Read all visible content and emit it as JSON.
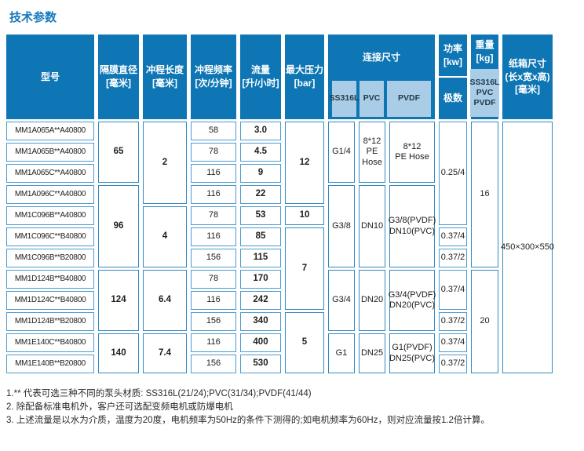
{
  "title": "技术参数",
  "header": {
    "model": "型号",
    "diaphragm": "隔膜直径\n[毫米]",
    "stroke": "冲程长度\n[毫米]",
    "frequency": "冲程频率\n[次/分钟]",
    "flow": "流量\n[升/小时]",
    "pressure": "最大压力\n[bar]",
    "connection": "连接尺寸",
    "conn_ss": "SS316L",
    "conn_pvc": "PVC",
    "conn_pvdf": "PVDF",
    "power": "功率\n[kw]",
    "poles": "极数",
    "weight": "重量\n[kg]",
    "weight_materials": "SS316L\nPVC\nPVDF",
    "carton": "纸箱尺寸\n(长x宽x高)\n[毫米]"
  },
  "rows": {
    "models": [
      "MM1A065A**A40800",
      "MM1A065B**A40800",
      "MM1A065C**A40800",
      "MM1A096C**A40800",
      "MM1C096B**A40800",
      "MM1C096C**B40800",
      "MM1C096B**B20800",
      "MM1D124B**B40800",
      "MM1D124C**B40800",
      "MM1D124B**B20800",
      "MM1E140C**B40800",
      "MM1E140B**B20800"
    ],
    "frequencies": [
      "58",
      "78",
      "116",
      "116",
      "78",
      "116",
      "156",
      "78",
      "116",
      "156",
      "116",
      "156"
    ],
    "flows": [
      "3.0",
      "4.5",
      "9",
      "22",
      "53",
      "85",
      "115",
      "170",
      "242",
      "340",
      "400",
      "530"
    ]
  },
  "groups": {
    "diaphragm": [
      "65",
      "96",
      "124",
      "140"
    ],
    "stroke": [
      "2",
      "4",
      "6.4",
      "7.4"
    ],
    "pressure": [
      "12",
      "10",
      "7",
      "5"
    ],
    "connection": [
      {
        "ss": "G1/4",
        "pvc": "8*12\nPE\nHose",
        "pvdf": "8*12\nPE Hose"
      },
      {
        "ss": "G3/8",
        "pvc": "DN10",
        "pvdf": "G3/8(PVDF)\nDN10(PVC)"
      },
      {
        "ss": "G3/4",
        "pvc": "DN20",
        "pvdf": "G3/4(PVDF)\nDN20(PVC)"
      },
      {
        "ss": "G1",
        "pvc": "DN25",
        "pvdf": "G1(PVDF)\nDN25(PVC)"
      }
    ],
    "power": [
      "0.25/4",
      "0.37/4",
      "0.37/2",
      "0.37/4",
      "0.37/2",
      "0.37/4",
      "0.37/2"
    ],
    "weight": [
      "16",
      "20"
    ],
    "carton": "450×300×550"
  },
  "footnotes": [
    "1.** 代表可选三种不同的泵头材质: SS316L(21/24);PVC(31/34);PVDF(41/44)",
    "2. 除配备标准电机外，客户还可选配变频电机或防爆电机",
    "3. 上述流量是以水为介质，温度为20度，电机频率为50Hz的条件下测得的;如电机频率为60Hz，则对应流量按1.2倍计算。"
  ]
}
